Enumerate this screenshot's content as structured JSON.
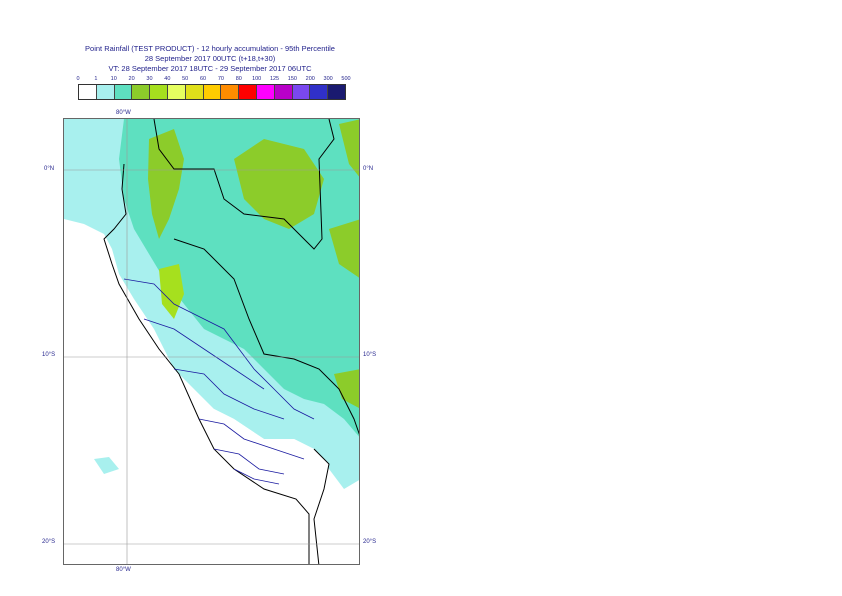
{
  "title": {
    "line1": "Point Rainfall (TEST PRODUCT) - 12 hourly accumulation - 95th Percentile",
    "line2": "28 September 2017 00UTC (t+18,t+30)",
    "line3": "VT: 28 September 2017 18UTC - 29 September 2017 06UTC"
  },
  "legend": {
    "thresholds": [
      "0",
      "1",
      "10",
      "20",
      "30",
      "40",
      "50",
      "60",
      "70",
      "80",
      "100",
      "125",
      "150",
      "200",
      "300",
      "500"
    ],
    "colors": [
      "#ffffff",
      "#a8f0ee",
      "#5ee0c0",
      "#8ccc2a",
      "#a6e01e",
      "#e6ff60",
      "#e0e01a",
      "#ffcc00",
      "#ff8c00",
      "#ff0000",
      "#ff00ff",
      "#b800c8",
      "#7a48f0",
      "#3030c8",
      "#1a1a70"
    ]
  },
  "map": {
    "lon_label_top": "80°W",
    "lon_label_bottom": "80°W",
    "lat_labels": [
      "0°N",
      "10°S",
      "20°S"
    ],
    "lat_labels_right": [
      "0°N",
      "10°S",
      "20°S"
    ]
  }
}
